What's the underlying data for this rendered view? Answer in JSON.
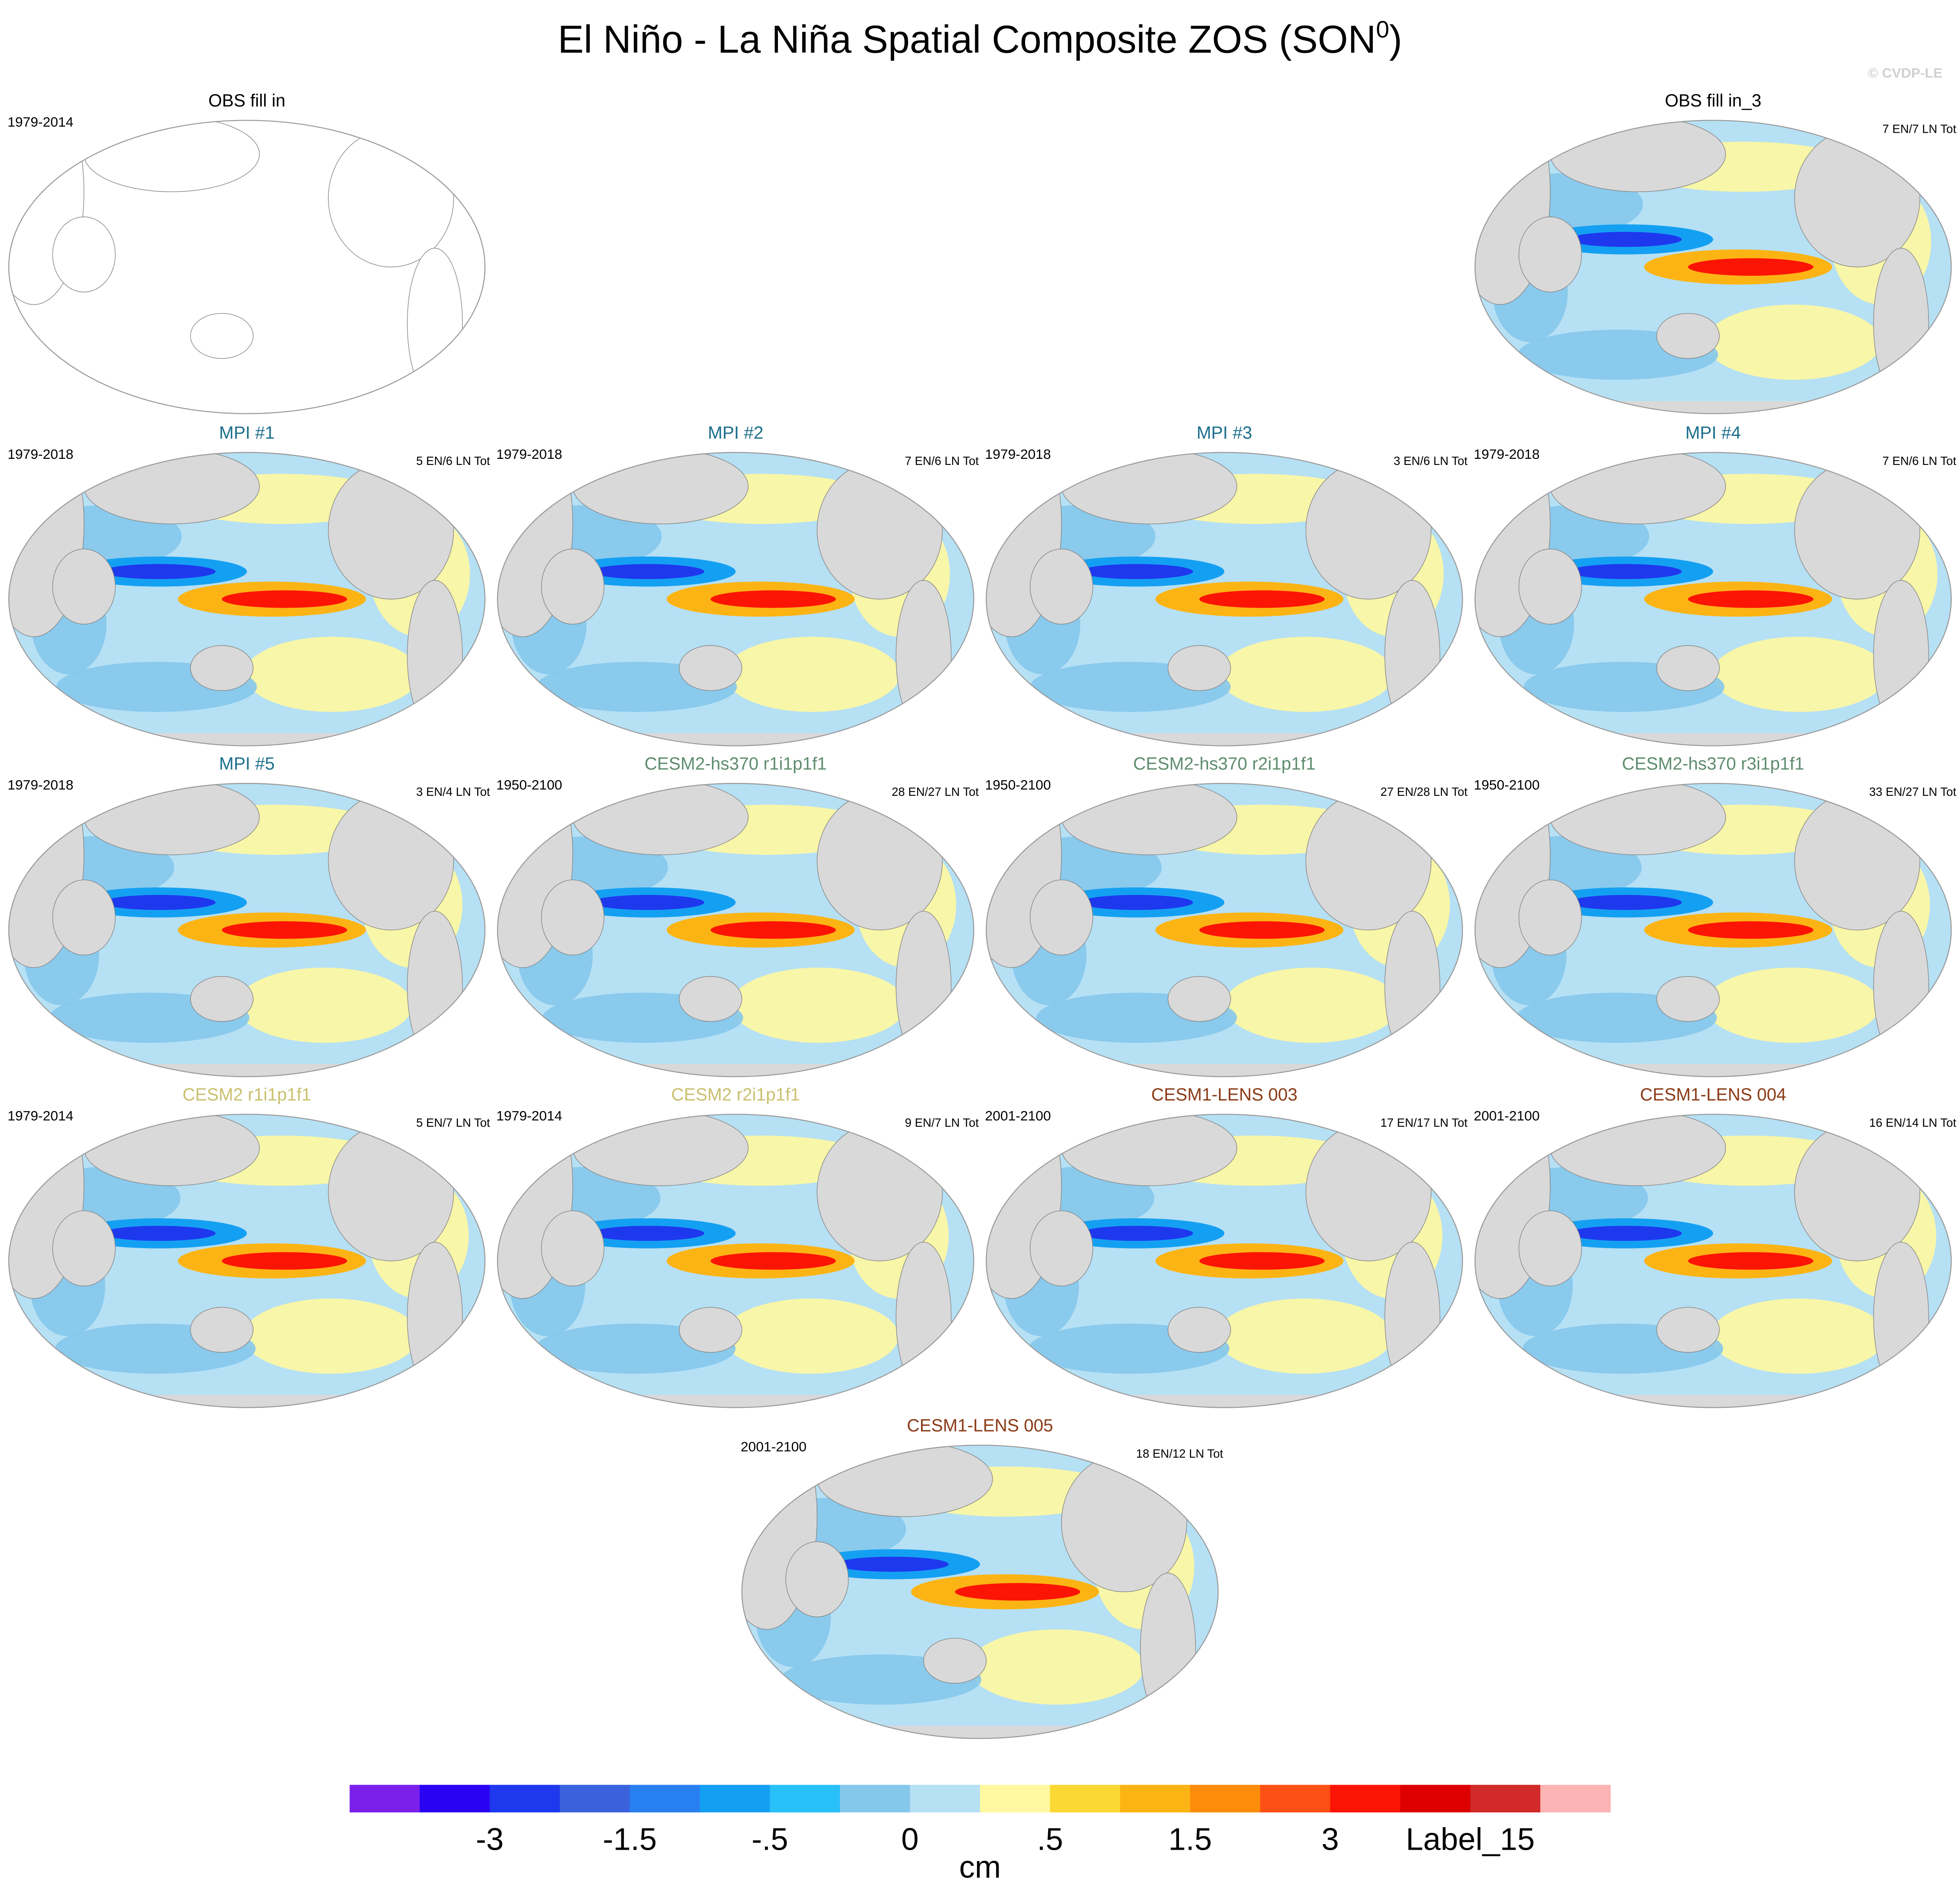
{
  "header": {
    "title": "El Niño - La Niña Spatial Composite ZOS (SON",
    "title_sup": "0",
    "title_end": ")",
    "credit": "© CVDP-LE"
  },
  "panels": [
    {
      "title": "OBS fill in",
      "color": "#000000",
      "years": "1979-2014",
      "counts": null
    },
    {
      "title": "OBS fill in_3",
      "color": "#000000",
      "years": null,
      "counts": "7 EN/7 LN Tot"
    },
    {
      "title": "MPI #1",
      "color": "#1b6e8c",
      "years": "1979-2018",
      "counts": "5 EN/6 LN Tot"
    },
    {
      "title": "MPI #2",
      "color": "#1b6e8c",
      "years": "1979-2018",
      "counts": "7 EN/6 LN Tot"
    },
    {
      "title": "MPI #3",
      "color": "#1b6e8c",
      "years": "1979-2018",
      "counts": "3 EN/6 LN Tot"
    },
    {
      "title": "MPI #4",
      "color": "#1b6e8c",
      "years": "1979-2018",
      "counts": "7 EN/6 LN Tot"
    },
    {
      "title": "MPI #5",
      "color": "#1b6e8c",
      "years": "1979-2018",
      "counts": "3 EN/4 LN Tot"
    },
    {
      "title": "CESM2-hs370 r1i1p1f1",
      "color": "#5e8c6e",
      "years": "1950-2100",
      "counts": "28 EN/27 LN Tot"
    },
    {
      "title": "CESM2-hs370 r2i1p1f1",
      "color": "#5e8c6e",
      "years": "1950-2100",
      "counts": "27 EN/28 LN Tot"
    },
    {
      "title": "CESM2-hs370 r3i1p1f1",
      "color": "#5e8c6e",
      "years": "1950-2100",
      "counts": "33 EN/27 LN Tot"
    },
    {
      "title": "CESM2 r1i1p1f1",
      "color": "#c9c06e",
      "years": "1979-2014",
      "counts": "5 EN/7 LN Tot"
    },
    {
      "title": "CESM2 r2i1p1f1",
      "color": "#c9c06e",
      "years": "1979-2014",
      "counts": "9 EN/7 LN Tot"
    },
    {
      "title": "CESM1-LENS 003",
      "color": "#8b3a16",
      "years": "2001-2100",
      "counts": "17 EN/17 LN Tot"
    },
    {
      "title": "CESM1-LENS 004",
      "color": "#8b3a16",
      "years": "2001-2100",
      "counts": "16 EN/14 LN Tot"
    },
    {
      "title": "CESM1-LENS 005",
      "color": "#8b3a16",
      "years": "2001-2100",
      "counts": "18 EN/12 LN Tot"
    }
  ],
  "colorbar": {
    "colors": [
      "#7a20ea",
      "#2a02f2",
      "#1e38ee",
      "#3a62dc",
      "#2880f0",
      "#14a0f2",
      "#28c0f8",
      "#84c8ec",
      "#b6e0f4",
      "#fff8a0",
      "#fcd834",
      "#fcb414",
      "#fc8c0a",
      "#fc5014",
      "#fc1404",
      "#dc0000",
      "#d22a2a",
      "#fcb4b4"
    ],
    "labels": [
      "-3",
      "-1.5",
      "-.5",
      "0",
      ".5",
      "1.5",
      "3",
      "Label_15"
    ],
    "unit": "cm"
  }
}
